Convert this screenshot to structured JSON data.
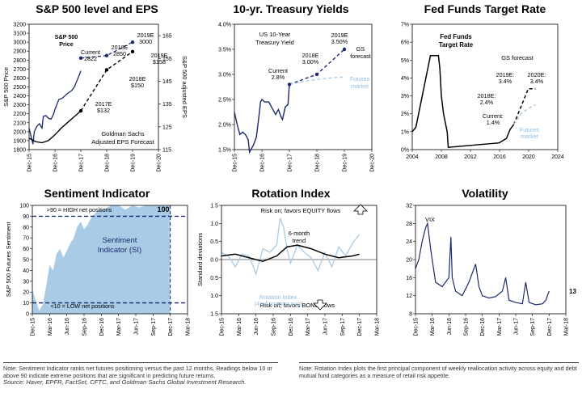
{
  "chart_data": [
    {
      "type": "line",
      "title": "S&P 500 level and EPS",
      "ylabel": "S&P 500 Price",
      "ylabel_right": "S&P 500 adjusted EPS",
      "ylim": [
        1800,
        3200
      ],
      "ylim_right": [
        115,
        170
      ],
      "x_ticks": [
        "Dec-15",
        "Dec-16",
        "Dec-17",
        "Dec-18",
        "Dec-19",
        "Dec-20"
      ],
      "y_ticks": [
        "3200",
        "3100",
        "3000",
        "2900",
        "2800",
        "2700",
        "2600",
        "2500",
        "2400",
        "2300",
        "2200",
        "2100",
        "2000",
        "1900",
        "1800"
      ],
      "y_ticks_right": [
        "165",
        "155",
        "145",
        "135",
        "125",
        "115"
      ],
      "series": [
        {
          "name": "S&P 500 Price",
          "color": "#1b2a6b",
          "x": [
            2015.95,
            2016.05,
            2016.1,
            2016.15,
            2016.25,
            2016.35,
            2016.45,
            2016.5,
            2016.6,
            2016.7,
            2016.8,
            2016.9,
            2016.95,
            2017.1,
            2017.2,
            2017.3,
            2017.4,
            2017.5,
            2017.6,
            2017.7,
            2017.8,
            2017.9,
            2017.95
          ],
          "values": [
            2040,
            1920,
            1860,
            2000,
            2060,
            2090,
            2040,
            2170,
            2180,
            2150,
            2140,
            2200,
            2250,
            2360,
            2370,
            2390,
            2420,
            2440,
            2460,
            2500,
            2570,
            2640,
            2680
          ]
        },
        {
          "name": "S&P 500 Price forecast",
          "style": "dashed",
          "color": "#1b2a6b",
          "x": [
            2017.95,
            2018.95,
            2019.95
          ],
          "values": [
            2822,
            2850,
            3000
          ]
        },
        {
          "name": "Goldman Sachs Adjusted EPS",
          "axis": "right",
          "color": "#000000",
          "x": [
            2015.95,
            2016.2,
            2016.45,
            2016.7,
            2016.95,
            2017.2,
            2017.45,
            2017.7,
            2017.95
          ],
          "values": [
            120,
            118.5,
            118,
            119,
            121.5,
            124.5,
            127,
            129.5,
            132
          ]
        },
        {
          "name": "Goldman Sachs Adjusted EPS Forecast",
          "axis": "right",
          "style": "dashed",
          "color": "#000000",
          "x": [
            2017.95,
            2018.95,
            2019.95
          ],
          "values": [
            132,
            150,
            158
          ]
        }
      ],
      "annotations": [
        "S&P 500 Price",
        "Current 2822",
        "2018E 2850",
        "2019E 3000",
        "2017E $132",
        "2018E $150",
        "2019E $158",
        "Goldman Sachs Adjusted EPS Forecast"
      ]
    },
    {
      "type": "line",
      "title": "10-yr. Treasury Yields",
      "ylim": [
        1.5,
        4.0
      ],
      "x_ticks": [
        "Dec-15",
        "Dec-16",
        "Dec-17",
        "Dec-18",
        "Dec-19",
        "Dec-20"
      ],
      "y_ticks": [
        "4.0%",
        "3.5%",
        "3.0%",
        "2.5%",
        "2.0%",
        "1.5%"
      ],
      "series": [
        {
          "name": "US 10-Year Treasury Yield",
          "color": "#1b2a6b",
          "x": [
            2015.95,
            2016.05,
            2016.15,
            2016.25,
            2016.35,
            2016.45,
            2016.5,
            2016.55,
            2016.65,
            2016.75,
            2016.85,
            2016.9,
            2016.95,
            2017.05,
            2017.2,
            2017.35,
            2017.45,
            2017.55,
            2017.65,
            2017.7,
            2017.8,
            2017.9,
            2017.95
          ],
          "values": [
            2.25,
            2.0,
            1.8,
            1.85,
            1.8,
            1.7,
            1.45,
            1.5,
            1.6,
            1.75,
            2.2,
            2.45,
            2.5,
            2.45,
            2.45,
            2.3,
            2.2,
            2.3,
            2.15,
            2.1,
            2.35,
            2.4,
            2.8
          ]
        },
        {
          "name": "GS forecast",
          "style": "dashed",
          "color": "#1b2a6b",
          "x": [
            2017.95,
            2018.95,
            2019.95
          ],
          "values": [
            2.8,
            3.0,
            3.5
          ]
        },
        {
          "name": "Futures market",
          "style": "dashed",
          "color": "#a9cbe6",
          "x": [
            2017.95,
            2018.45,
            2018.95,
            2019.45,
            2019.95
          ],
          "values": [
            2.8,
            2.86,
            2.9,
            2.93,
            2.95
          ]
        }
      ],
      "annotations": [
        "US 10-Year Treasury Yield",
        "Current 2.8%",
        "2018E 3.00%",
        "2019E 3.50%",
        "GS forecast",
        "Futures market"
      ]
    },
    {
      "type": "line",
      "title": "Fed Funds Target Rate",
      "ylim": [
        0,
        7
      ],
      "x_ticks": [
        "2004",
        "2008",
        "2012",
        "2016",
        "2020",
        "2024"
      ],
      "y_ticks": [
        "7%",
        "6%",
        "5%",
        "4%",
        "3%",
        "2%",
        "1%",
        "0%"
      ],
      "series": [
        {
          "name": "Fed Funds Target Rate",
          "color": "#000000",
          "x": [
            2004.0,
            2004.5,
            2005.0,
            2005.5,
            2006.0,
            2006.5,
            2007.6,
            2007.8,
            2008.0,
            2008.3,
            2008.8,
            2008.95,
            2015.95,
            2016.95,
            2017.2,
            2017.45,
            2017.95
          ],
          "values": [
            1.0,
            1.25,
            2.25,
            3.25,
            4.25,
            5.25,
            5.25,
            4.5,
            3.0,
            2.0,
            1.0,
            0.125,
            0.375,
            0.625,
            0.875,
            1.125,
            1.4
          ]
        },
        {
          "name": "GS forecast",
          "style": "dashed",
          "color": "#000000",
          "x": [
            2017.95,
            2018.95,
            2019.95,
            2020.95
          ],
          "values": [
            1.4,
            2.4,
            3.4,
            3.4
          ]
        },
        {
          "name": "Futures market",
          "style": "dashed",
          "color": "#a9cbe6",
          "x": [
            2017.95,
            2018.95,
            2019.95,
            2020.95
          ],
          "values": [
            1.4,
            2.0,
            2.3,
            2.5
          ]
        }
      ],
      "annotations": [
        "Fed Funds Target Rate",
        "GS forecast",
        "Current: 1.4%",
        "2018E: 2.4%",
        "2019E: 3.4%",
        "2020E: 3.4%",
        "Futures market"
      ]
    },
    {
      "type": "area",
      "title": "Sentiment Indicator",
      "ylabel": "S&P 500 Futures Sentiment",
      "ylim": [
        0,
        100
      ],
      "x_ticks": [
        "Dec-15",
        "Mar-16",
        "Jun-16",
        "Sep-16",
        "Dec-16",
        "Mar-17",
        "Jun-17",
        "Sep-17",
        "Dec-17",
        "Mar-18"
      ],
      "y_ticks": [
        "100",
        "90",
        "80",
        "70",
        "60",
        "50",
        "40",
        "30",
        "20",
        "10",
        "0"
      ],
      "series": [
        {
          "name": "Sentiment Indicator (SI)",
          "color": "#a9cbe6",
          "x": [
            2015.95,
            2016.0,
            2016.05,
            2016.1,
            2016.15,
            2016.2,
            2016.25,
            2016.3,
            2016.35,
            2016.4,
            2016.45,
            2016.5,
            2016.55,
            2016.6,
            2016.65,
            2016.7,
            2016.75,
            2016.8,
            2016.85,
            2016.9,
            2016.95,
            2017.0,
            2017.1,
            2017.2,
            2017.3,
            2017.4,
            2017.5,
            2017.6,
            2017.7,
            2017.8,
            2017.85,
            2017.9,
            2017.95
          ],
          "values": [
            22,
            12,
            3,
            8,
            25,
            45,
            40,
            55,
            60,
            52,
            58,
            65,
            70,
            80,
            85,
            78,
            82,
            88,
            92,
            95,
            96,
            97,
            100,
            100,
            96,
            100,
            98,
            100,
            100,
            100,
            100,
            100,
            100
          ]
        }
      ],
      "reference_lines": [
        90,
        10
      ],
      "annotations": [
        ">90 = HIGH net positions",
        "<10 = LOW net positions",
        "Sentiment Indicator (SI)",
        "100"
      ]
    },
    {
      "type": "line",
      "title": "Rotation Index",
      "ylabel": "Standard deviations",
      "ylim": [
        -1.5,
        1.5
      ],
      "y_reversed_labels": true,
      "x_ticks": [
        "Dec-15",
        "Mar-16",
        "Jun-16",
        "Sep-16",
        "Dec-16",
        "Mar-17",
        "Jun-17",
        "Sep-17",
        "Dec-17",
        "Mar-18"
      ],
      "y_ticks": [
        "1.5",
        "1.0",
        "0.5",
        "0.0",
        "0.5",
        "1.0",
        "1.5"
      ],
      "series": [
        {
          "name": "Rotation Index (4-wk moving avg)",
          "color": "#a9cbe6",
          "x": [
            2015.95,
            2016.05,
            2016.15,
            2016.25,
            2016.35,
            2016.45,
            2016.55,
            2016.65,
            2016.75,
            2016.8,
            2016.85,
            2016.9,
            2016.95,
            2017.05,
            2017.15,
            2017.25,
            2017.35,
            2017.45,
            2017.55,
            2017.65,
            2017.75,
            2017.85,
            2017.95
          ],
          "values": [
            0.2,
            0.1,
            -0.2,
            0.15,
            0.1,
            -0.4,
            0.3,
            0.2,
            0.4,
            1.15,
            0.9,
            0.3,
            -0.1,
            0.4,
            0.2,
            0.05,
            -0.3,
            0.2,
            -0.2,
            0.35,
            0.1,
            0.45,
            0.7
          ]
        },
        {
          "name": "6-month trend",
          "color": "#000000",
          "x": [
            2015.95,
            2016.15,
            2016.35,
            2016.55,
            2016.75,
            2016.9,
            2017.05,
            2017.25,
            2017.45,
            2017.65,
            2017.85,
            2017.95
          ],
          "values": [
            0.1,
            0.15,
            0.05,
            -0.05,
            0.1,
            0.35,
            0.4,
            0.3,
            0.15,
            0.05,
            0.1,
            0.15
          ]
        }
      ],
      "annotations": [
        "Risk on; favors EQUITY flows",
        "Risk off; favors BOND flows",
        "6-month trend",
        "Rotation Index (4-wk moving avg)"
      ]
    },
    {
      "type": "line",
      "title": "Volatility",
      "ylim": [
        8,
        32
      ],
      "x_ticks": [
        "Dec-15",
        "Mar-16",
        "Jun-16",
        "Sep-16",
        "Dec-16",
        "Mar-17",
        "Jun-17",
        "Sep-17",
        "Dec-17",
        "Mar-18"
      ],
      "y_ticks": [
        "32",
        "28",
        "24",
        "20",
        "16",
        "12",
        "8"
      ],
      "series": [
        {
          "name": "VIX",
          "color": "#1b2a6b",
          "x": [
            2015.95,
            2016.0,
            2016.05,
            2016.1,
            2016.13,
            2016.18,
            2016.25,
            2016.35,
            2016.45,
            2016.48,
            2016.5,
            2016.55,
            2016.65,
            2016.75,
            2016.85,
            2016.9,
            2016.95,
            2017.05,
            2017.15,
            2017.25,
            2017.3,
            2017.35,
            2017.45,
            2017.55,
            2017.6,
            2017.65,
            2017.75,
            2017.85,
            2017.9,
            2017.95
          ],
          "values": [
            18,
            20,
            24,
            27,
            28,
            22,
            15,
            14,
            16,
            25,
            16,
            13,
            12,
            15,
            19,
            14,
            12,
            11.5,
            11.8,
            13,
            16,
            11,
            10.5,
            10.2,
            15,
            10.5,
            10,
            10.2,
            11,
            13
          ]
        }
      ],
      "annotations": [
        "VIX",
        "13"
      ]
    }
  ],
  "notes": {
    "left": "Note: Sentiment Indicator ranks net futures positioning versus the past 12 months. Readings below 10 or above 90 indicate extreme positions that are significant in predicting future returns.",
    "right": "Note: Rotation Index plots the first principal component of weekly reallocation activity across equity and debt mutual fund categories as a measure of retail risk appetite.",
    "source": "Source: Haver, EPFR, FactSet, CFTC, and Goldman Sachs Global Investment Research."
  }
}
